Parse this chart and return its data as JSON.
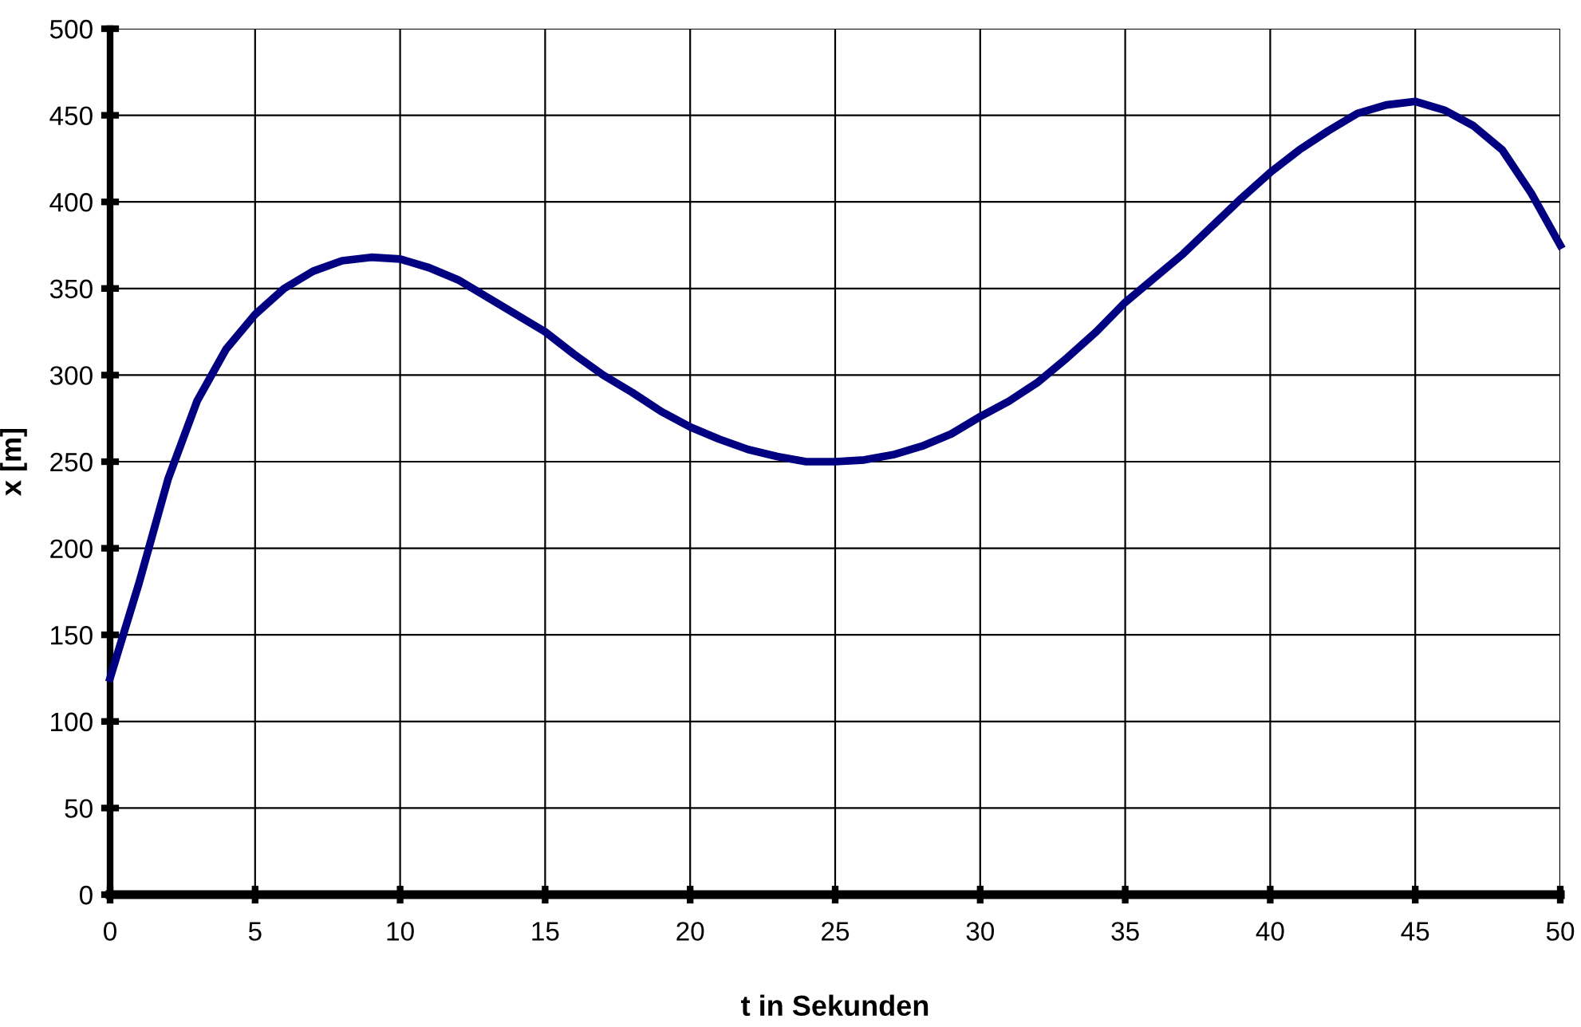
{
  "chart_data": {
    "type": "line",
    "xlabel": "t in Sekunden",
    "ylabel": "x [m]",
    "x": [
      0,
      1,
      2,
      3,
      4,
      5,
      6,
      7,
      8,
      9,
      10,
      11,
      12,
      13,
      14,
      15,
      16,
      17,
      18,
      19,
      20,
      21,
      22,
      23,
      24,
      25,
      26,
      27,
      28,
      29,
      30,
      31,
      32,
      33,
      34,
      35,
      36,
      37,
      38,
      39,
      40,
      41,
      42,
      43,
      44,
      45,
      46,
      47,
      48,
      49,
      50
    ],
    "series": [
      {
        "color": "#000080",
        "values": [
          125,
          180,
          240,
          285,
          315,
          335,
          350,
          360,
          366,
          368,
          367,
          362,
          355,
          345,
          335,
          325,
          312,
          300,
          290,
          279,
          270,
          263,
          257,
          253,
          250,
          250,
          251,
          254,
          259,
          266,
          276,
          285,
          296,
          310,
          325,
          342,
          356,
          370,
          386,
          402,
          417,
          430,
          441,
          451,
          456,
          458,
          453,
          444,
          430,
          405,
          375
        ]
      }
    ],
    "xlim": [
      0,
      50
    ],
    "xticks": [
      0,
      5,
      10,
      15,
      20,
      25,
      30,
      35,
      40,
      45,
      50
    ],
    "ylim": [
      0,
      500
    ],
    "yticks": [
      0,
      50,
      100,
      150,
      200,
      250,
      300,
      350,
      400,
      450,
      500
    ],
    "grid": true,
    "legend": false,
    "marker": "none",
    "line_style": "solid"
  }
}
